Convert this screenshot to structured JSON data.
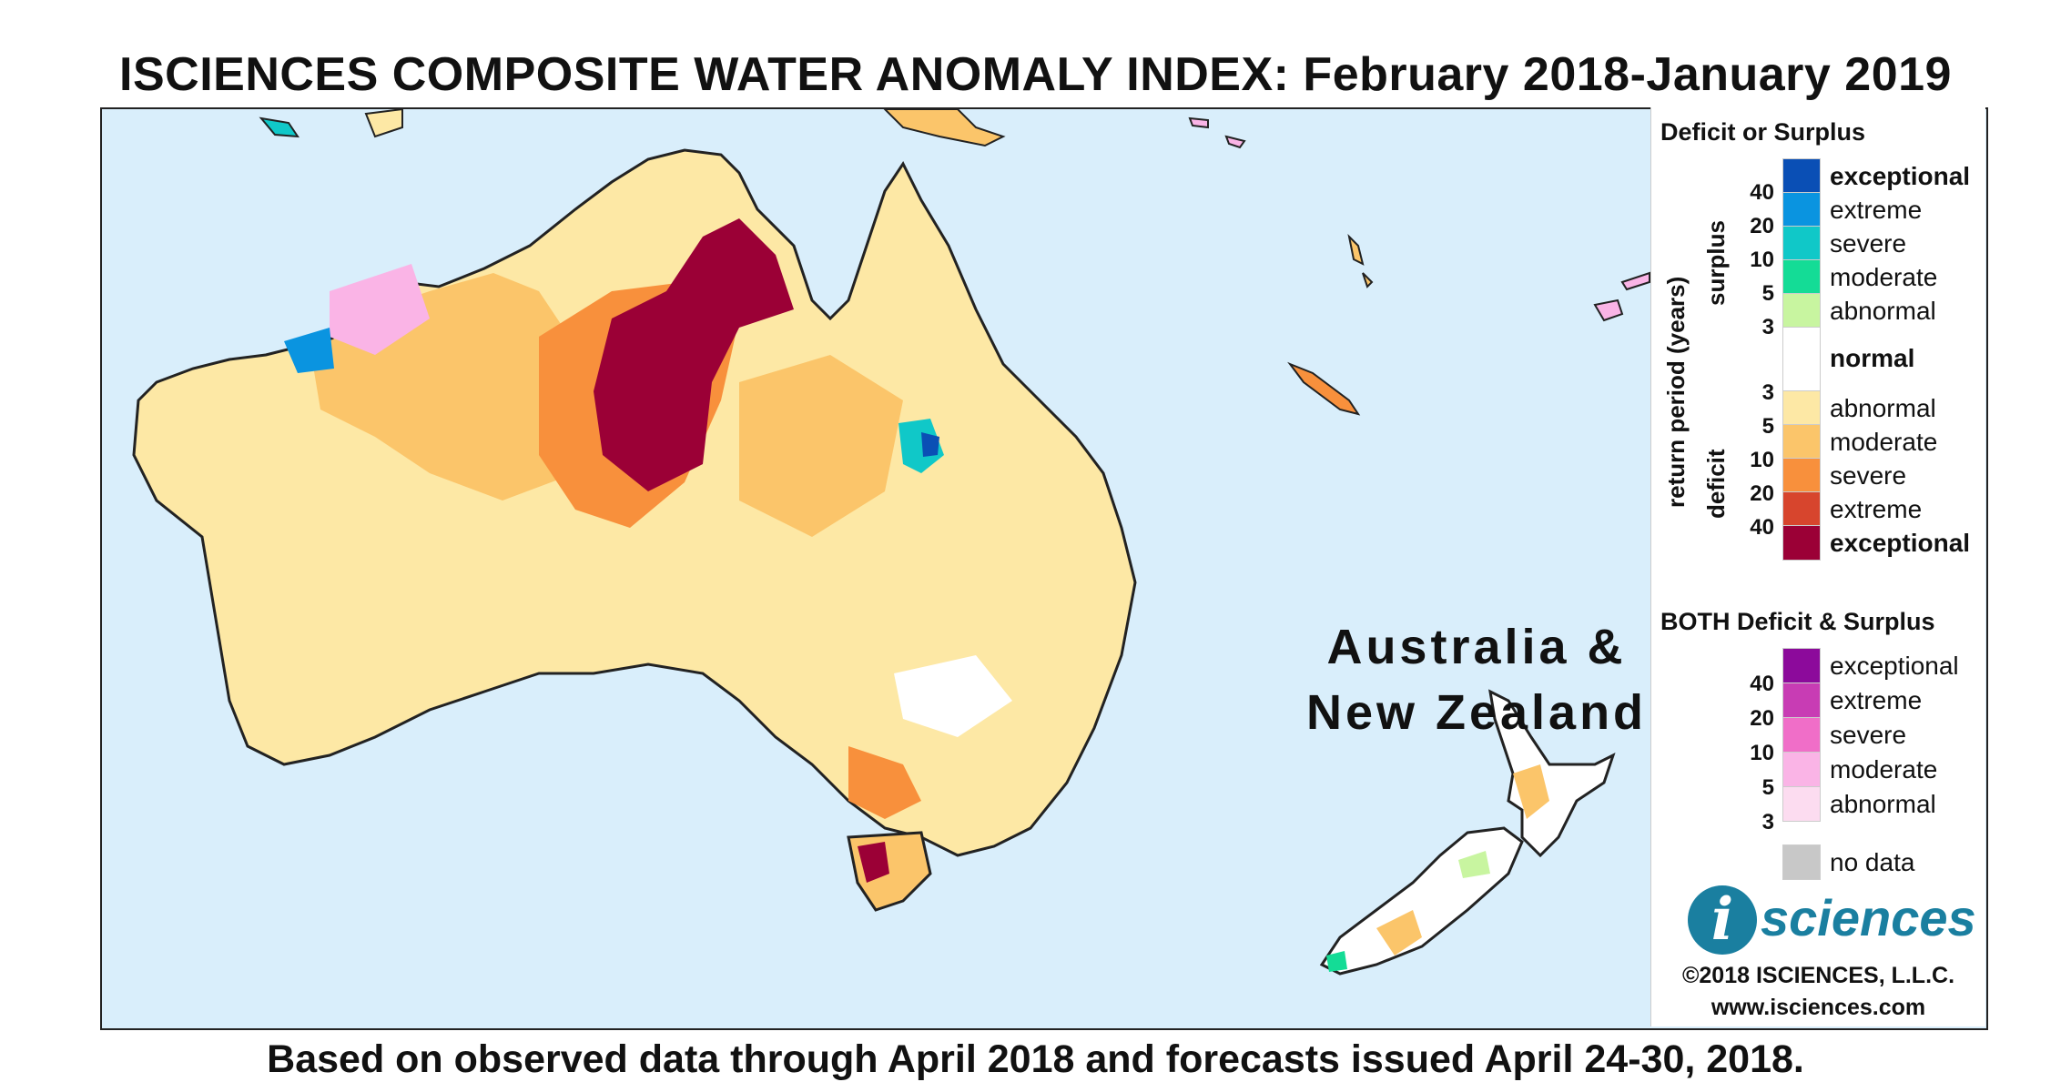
{
  "title": "ISCIENCES COMPOSITE WATER ANOMALY INDEX: February 2018-January 2019",
  "footer": "Based on observed data through April 2018 and forecasts issued April 24-30, 2018.",
  "region_label_line1": "Australia &",
  "region_label_line2": "New Zealand",
  "legend": {
    "section1_title": "Deficit or Surplus",
    "axis_label": "return period (years)",
    "surplus_label": "surplus",
    "deficit_label": "deficit",
    "surplus": [
      {
        "label": "exceptional",
        "color": "#0a4fb5",
        "bold": true
      },
      {
        "label": "extreme",
        "color": "#0a94e0",
        "bold": false
      },
      {
        "label": "severe",
        "color": "#10c8c8",
        "bold": false
      },
      {
        "label": "moderate",
        "color": "#14dc96",
        "bold": false
      },
      {
        "label": "abnormal",
        "color": "#c8f5a0",
        "bold": false
      }
    ],
    "normal": {
      "label": "normal",
      "color": "#ffffff"
    },
    "deficit": [
      {
        "label": "abnormal",
        "color": "#fde8a5",
        "bold": false
      },
      {
        "label": "moderate",
        "color": "#fbc56a",
        "bold": false
      },
      {
        "label": "severe",
        "color": "#f8903c",
        "bold": false
      },
      {
        "label": "extreme",
        "color": "#d7452d",
        "bold": false
      },
      {
        "label": "exceptional",
        "color": "#9b0036",
        "bold": true
      }
    ],
    "surplus_ticks": [
      "40",
      "20",
      "10",
      "5",
      "3"
    ],
    "deficit_ticks": [
      "3",
      "5",
      "10",
      "20",
      "40"
    ],
    "section2_title": "BOTH Deficit & Surplus",
    "both": [
      {
        "label": "exceptional",
        "color": "#8c0a9b"
      },
      {
        "label": "extreme",
        "color": "#c83cb4"
      },
      {
        "label": "severe",
        "color": "#f06ec8"
      },
      {
        "label": "moderate",
        "color": "#fab4e6"
      },
      {
        "label": "abnormal",
        "color": "#fcdcf0"
      }
    ],
    "both_ticks": [
      "40",
      "20",
      "10",
      "5",
      "3"
    ],
    "nodata": {
      "label": "no data",
      "color": "#c8c8c8"
    }
  },
  "logo": {
    "mark": "i",
    "text": "sciences"
  },
  "copyright": "©2018 ISCIENCES, L.L.C.",
  "website": "www.isciences.com",
  "colors": {
    "ocean": "#d9eefb",
    "deficit_abnormal": "#fde8a5",
    "deficit_exceptional": "#9b0036"
  }
}
